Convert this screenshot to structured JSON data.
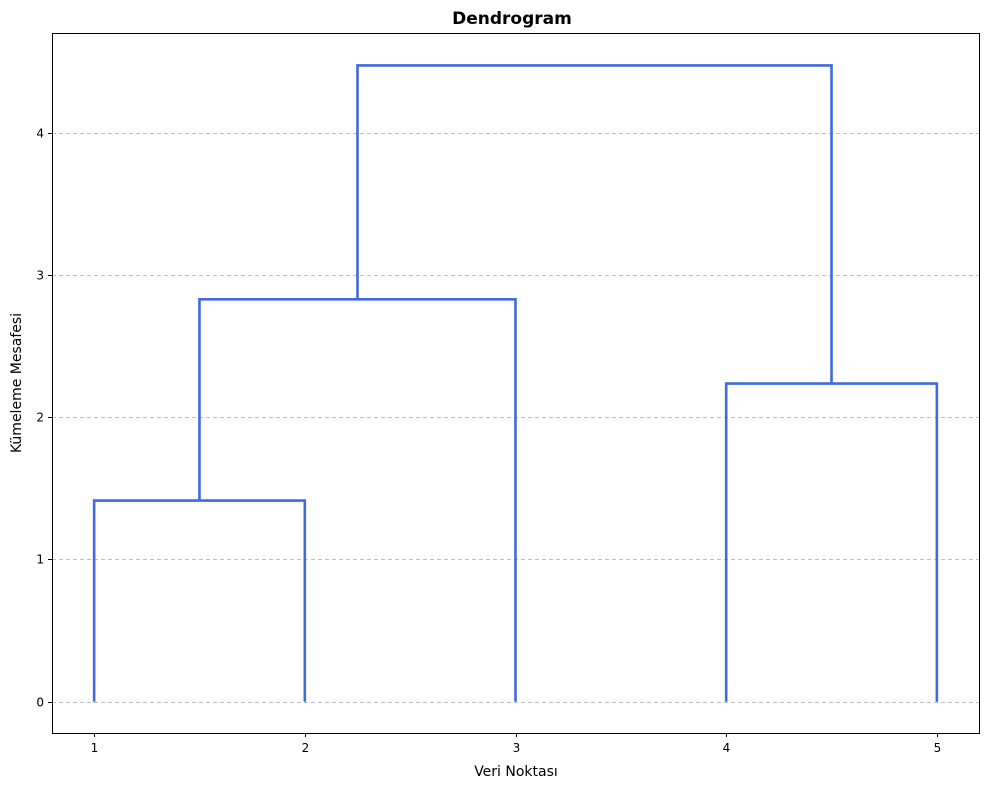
{
  "chart_data": {
    "type": "dendrogram",
    "title": "Dendrogram",
    "xlabel": "Veri Noktası",
    "ylabel": "Kümeleme Mesafesi",
    "leaves": [
      "1",
      "2",
      "3",
      "4",
      "5"
    ],
    "xlim": [
      0.8,
      5.2
    ],
    "ylim": [
      -0.22,
      4.7
    ],
    "yticks": [
      0,
      1,
      2,
      3,
      4
    ],
    "grid": "horizontal dashed",
    "link_color": "#4169e1",
    "merges": [
      {
        "members": [
          "1",
          "2"
        ],
        "left_x": 1,
        "right_x": 2,
        "left_height": 0,
        "right_height": 0,
        "distance": 1.414
      },
      {
        "members": [
          "1",
          "2",
          "3"
        ],
        "left_x": 1.5,
        "right_x": 3,
        "left_height": 1.414,
        "right_height": 0,
        "distance": 2.828
      },
      {
        "members": [
          "4",
          "5"
        ],
        "left_x": 4,
        "right_x": 5,
        "left_height": 0,
        "right_height": 0,
        "distance": 2.236
      },
      {
        "members": [
          "1",
          "2",
          "3",
          "4",
          "5"
        ],
        "left_x": 2.25,
        "right_x": 4.5,
        "left_height": 2.828,
        "right_height": 2.236,
        "distance": 4.472
      }
    ]
  }
}
